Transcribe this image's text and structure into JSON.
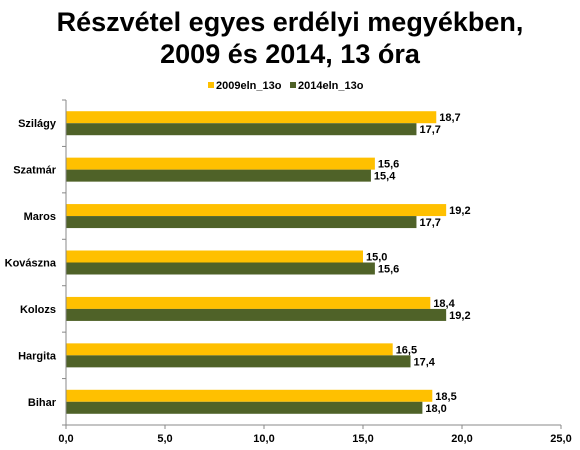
{
  "chart_data": {
    "type": "bar",
    "orientation": "horizontal",
    "title_lines": [
      "Részvétel egyes erdélyi megyékben,",
      "2009 és 2014, 13 óra"
    ],
    "categories": [
      "Szilágy",
      "Szatmár",
      "Maros",
      "Kovászna",
      "Kolozs",
      "Hargita",
      "Bihar"
    ],
    "series": [
      {
        "name": "2009eln_13o",
        "color": "#FFC000",
        "values": [
          18.7,
          15.6,
          19.2,
          15.0,
          18.4,
          16.5,
          18.5
        ],
        "labels": [
          "18,7",
          "15,6",
          "19,2",
          "15,0",
          "18,4",
          "16,5",
          "18,5"
        ]
      },
      {
        "name": "2014eln_13o",
        "color": "#4F6228",
        "values": [
          17.7,
          15.4,
          17.7,
          15.6,
          19.2,
          17.4,
          18.0
        ],
        "labels": [
          "17,7",
          "15,4",
          "17,7",
          "15,6",
          "19,2",
          "17,4",
          "18,0"
        ]
      }
    ],
    "xlim": [
      0,
      25
    ],
    "xticks": [
      0,
      5,
      10,
      15,
      20,
      25
    ],
    "xtick_labels": [
      "0,0",
      "5,0",
      "10,0",
      "15,0",
      "20,0",
      "25,0"
    ],
    "grid": false,
    "legend_position": "top"
  }
}
